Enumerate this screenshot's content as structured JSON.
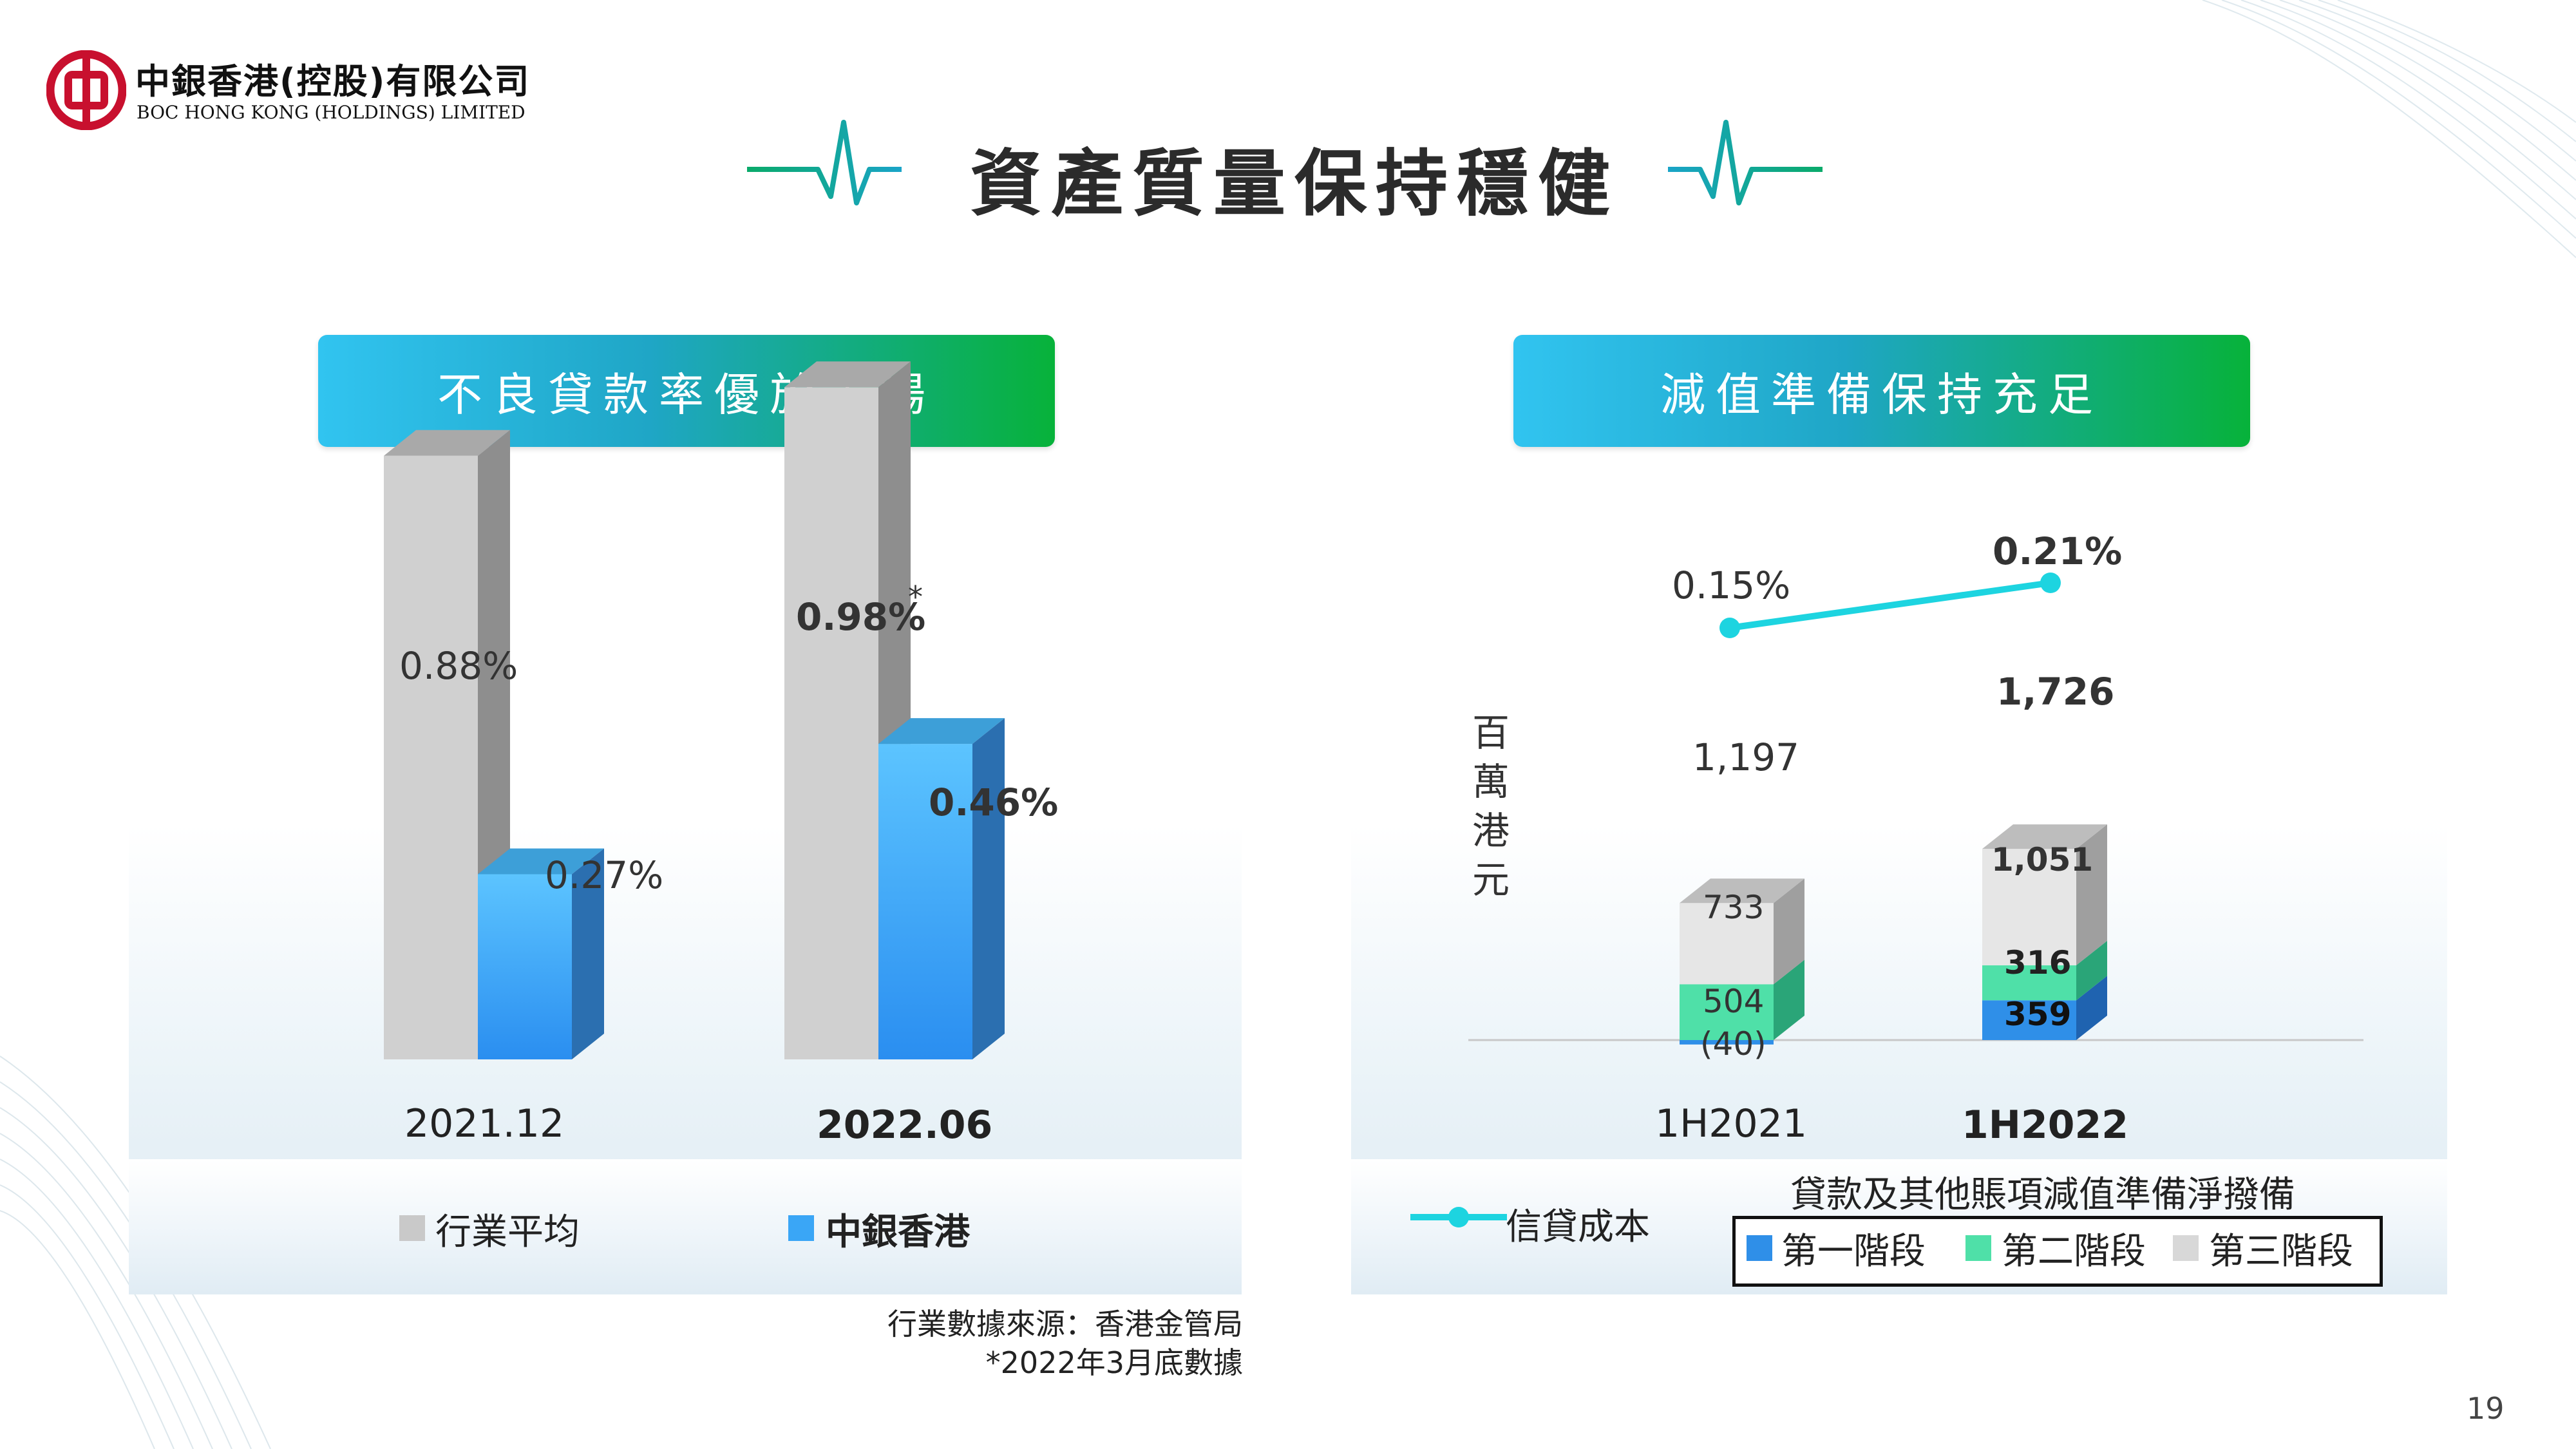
{
  "header": {
    "brand_cn": "中銀香港(控股)有限公司",
    "brand_en": "BOC HONG KONG (HOLDINGS) LIMITED",
    "title": "資產質量保持穩健"
  },
  "colors": {
    "brand_red": "#c8102e",
    "industry_grey": "#c9c9c9",
    "bochk_blue": "#3aa6f6",
    "stage1_blue": "#2f8fe8",
    "stage2_green": "#4fe0a8",
    "stage3_grey": "#e3e3e3",
    "credit_cost_line": "#1dd4e0"
  },
  "left": {
    "banner": "不良貸款率優於市場",
    "legend": {
      "industry": "行業平均",
      "bochk": "中銀香港"
    },
    "footnote_source": "行業數據來源：香港金管局",
    "footnote_star": "*2022年3月底數據"
  },
  "right": {
    "banner": "減值準備保持充足",
    "y_unit": "百萬港元",
    "legend": {
      "credit_cost": "信貸成本",
      "impairment_title": "貸款及其他賬項減值準備淨撥備",
      "stage1": "第一階段",
      "stage2": "第二階段",
      "stage3": "第三階段"
    }
  },
  "page_number": "19",
  "chart_data": [
    {
      "type": "bar",
      "categories": [
        "2021.12",
        "2022.06"
      ],
      "series": [
        {
          "name": "行業平均",
          "values": [
            0.88,
            0.98
          ],
          "labels": [
            "0.88%",
            "0.98%"
          ]
        },
        {
          "name": "中銀香港",
          "values": [
            0.27,
            0.46
          ],
          "labels": [
            "0.27%",
            "0.46%"
          ]
        }
      ],
      "annotations": [
        "*"
      ],
      "ylim": [
        0,
        1.1
      ],
      "title": ""
    },
    {
      "type": "bar",
      "stacked": true,
      "categories": [
        "1H2021",
        "1H2022"
      ],
      "ylabel": "百萬港元",
      "series": [
        {
          "name": "第一階段",
          "values": [
            -40,
            359
          ],
          "labels": [
            "(40)",
            "359"
          ]
        },
        {
          "name": "第二階段",
          "values": [
            504,
            316
          ],
          "labels": [
            "504",
            "316"
          ]
        },
        {
          "name": "第三階段",
          "values": [
            733,
            1051
          ],
          "labels": [
            "733",
            "1,051"
          ]
        }
      ],
      "totals": [
        1197,
        1726
      ],
      "total_labels": [
        "1,197",
        "1,726"
      ],
      "ylim": [
        -100,
        2000
      ],
      "title": ""
    },
    {
      "type": "line",
      "x": [
        "1H2021",
        "1H2022"
      ],
      "series": [
        {
          "name": "信貸成本",
          "values": [
            0.15,
            0.21
          ],
          "labels": [
            "0.15%",
            "0.21%"
          ]
        }
      ],
      "title": ""
    }
  ]
}
